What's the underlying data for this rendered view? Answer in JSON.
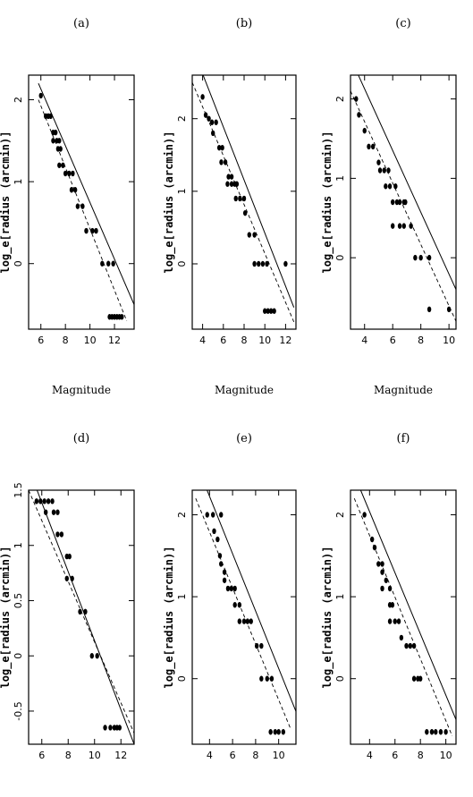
{
  "chart_data": [
    {
      "panel": "(a)",
      "type": "scatter",
      "xlabel": "Magnitude",
      "ylabel": "log_e[radius (arcmin)]",
      "xlim": [
        5,
        13.6
      ],
      "ylim": [
        -0.8,
        2.3
      ],
      "xticks": [
        "6",
        "8",
        "10",
        "12"
      ],
      "yticks": [
        "0",
        "1",
        "2"
      ],
      "points": [
        [
          6.0,
          2.05
        ],
        [
          6.4,
          1.8
        ],
        [
          6.6,
          1.8
        ],
        [
          6.8,
          1.8
        ],
        [
          7.0,
          1.6
        ],
        [
          7.2,
          1.6
        ],
        [
          7.0,
          1.5
        ],
        [
          7.3,
          1.5
        ],
        [
          7.5,
          1.5
        ],
        [
          7.4,
          1.4
        ],
        [
          7.6,
          1.4
        ],
        [
          7.5,
          1.2
        ],
        [
          7.8,
          1.2
        ],
        [
          8.0,
          1.1
        ],
        [
          8.3,
          1.1
        ],
        [
          8.6,
          1.1
        ],
        [
          8.5,
          0.9
        ],
        [
          8.8,
          0.9
        ],
        [
          9.0,
          0.7
        ],
        [
          9.4,
          0.7
        ],
        [
          9.7,
          0.4
        ],
        [
          10.2,
          0.4
        ],
        [
          10.5,
          0.4
        ],
        [
          11.0,
          0.0
        ],
        [
          11.5,
          0.0
        ],
        [
          11.9,
          0.0
        ],
        [
          11.6,
          -0.65
        ],
        [
          11.8,
          -0.65
        ],
        [
          12.0,
          -0.65
        ],
        [
          12.2,
          -0.65
        ],
        [
          12.4,
          -0.65
        ],
        [
          12.6,
          -0.65
        ]
      ],
      "solid_line": [
        [
          5.8,
          2.2
        ],
        [
          13.6,
          -0.5
        ]
      ],
      "dashed_line": [
        [
          5.8,
          2.0
        ],
        [
          13.0,
          -0.7
        ]
      ]
    },
    {
      "panel": "(b)",
      "type": "scatter",
      "xlabel": "Magnitude",
      "ylabel": "log_e[radius (arcmin)]",
      "xlim": [
        3,
        13
      ],
      "ylim": [
        -0.9,
        2.6
      ],
      "xticks": [
        "4",
        "6",
        "8",
        "10",
        "12"
      ],
      "yticks": [
        "0",
        "1",
        "2"
      ],
      "points": [
        [
          4.0,
          2.3
        ],
        [
          4.3,
          2.05
        ],
        [
          4.6,
          2.0
        ],
        [
          4.9,
          1.95
        ],
        [
          5.3,
          1.95
        ],
        [
          5.0,
          1.8
        ],
        [
          5.6,
          1.6
        ],
        [
          5.9,
          1.6
        ],
        [
          5.8,
          1.4
        ],
        [
          6.2,
          1.4
        ],
        [
          6.5,
          1.2
        ],
        [
          6.8,
          1.2
        ],
        [
          6.4,
          1.1
        ],
        [
          6.8,
          1.1
        ],
        [
          7.1,
          1.1
        ],
        [
          7.3,
          1.1
        ],
        [
          7.2,
          0.9
        ],
        [
          7.6,
          0.9
        ],
        [
          8.0,
          0.9
        ],
        [
          8.1,
          0.7
        ],
        [
          8.5,
          0.4
        ],
        [
          9.0,
          0.4
        ],
        [
          9.0,
          0.0
        ],
        [
          9.4,
          0.0
        ],
        [
          9.8,
          0.0
        ],
        [
          10.2,
          0.0
        ],
        [
          12.0,
          0.0
        ],
        [
          10.0,
          -0.65
        ],
        [
          10.3,
          -0.65
        ],
        [
          10.6,
          -0.65
        ],
        [
          10.9,
          -0.65
        ]
      ],
      "solid_line": [
        [
          3.5,
          2.8
        ],
        [
          12.8,
          -0.6
        ]
      ],
      "dashed_line": [
        [
          3.0,
          2.5
        ],
        [
          12.8,
          -0.8
        ]
      ]
    },
    {
      "panel": "(c)",
      "type": "scatter",
      "xlabel": "Magnitude",
      "ylabel": "log_e[radius (arcmin)]",
      "xlim": [
        3,
        10.5
      ],
      "ylim": [
        -0.9,
        2.3
      ],
      "xticks": [
        "4",
        "6",
        "8",
        "10"
      ],
      "yticks": [
        "0",
        "1",
        "2"
      ],
      "points": [
        [
          3.4,
          2.0
        ],
        [
          3.6,
          1.8
        ],
        [
          4.0,
          1.6
        ],
        [
          4.3,
          1.4
        ],
        [
          4.6,
          1.4
        ],
        [
          5.0,
          1.2
        ],
        [
          5.1,
          1.1
        ],
        [
          5.4,
          1.1
        ],
        [
          5.7,
          1.1
        ],
        [
          5.5,
          0.9
        ],
        [
          5.8,
          0.9
        ],
        [
          6.2,
          0.9
        ],
        [
          6.5,
          0.7
        ],
        [
          6.0,
          0.7
        ],
        [
          6.3,
          0.7
        ],
        [
          6.8,
          0.7
        ],
        [
          6.9,
          0.7
        ],
        [
          6.0,
          0.4
        ],
        [
          6.5,
          0.4
        ],
        [
          6.8,
          0.4
        ],
        [
          7.3,
          0.4
        ],
        [
          7.6,
          0.0
        ],
        [
          8.0,
          0.0
        ],
        [
          8.6,
          0.0
        ],
        [
          8.6,
          -0.65
        ],
        [
          10.0,
          -0.65
        ]
      ],
      "solid_line": [
        [
          3.3,
          2.4
        ],
        [
          10.5,
          -0.4
        ]
      ],
      "dashed_line": [
        [
          3.0,
          2.1
        ],
        [
          10.5,
          -0.8
        ]
      ]
    },
    {
      "panel": "(d)",
      "type": "scatter",
      "xlabel": "",
      "ylabel": "log_e[radius (arcmin)]",
      "xlim": [
        5,
        13
      ],
      "ylim": [
        -0.8,
        1.5
      ],
      "xticks": [
        "6",
        "8",
        "10",
        "12"
      ],
      "yticks": [
        "-0.5",
        "0",
        "0.5",
        "1",
        "1.5"
      ],
      "points": [
        [
          5.6,
          1.4
        ],
        [
          5.9,
          1.4
        ],
        [
          6.2,
          1.4
        ],
        [
          6.5,
          1.4
        ],
        [
          6.8,
          1.4
        ],
        [
          6.3,
          1.3
        ],
        [
          6.9,
          1.3
        ],
        [
          7.2,
          1.3
        ],
        [
          7.2,
          1.1
        ],
        [
          7.5,
          1.1
        ],
        [
          7.9,
          0.9
        ],
        [
          8.1,
          0.9
        ],
        [
          7.9,
          0.7
        ],
        [
          8.3,
          0.7
        ],
        [
          8.9,
          0.4
        ],
        [
          9.3,
          0.4
        ],
        [
          9.8,
          0.0
        ],
        [
          10.2,
          0.0
        ],
        [
          10.8,
          -0.65
        ],
        [
          11.2,
          -0.65
        ],
        [
          11.5,
          -0.65
        ],
        [
          11.7,
          -0.65
        ],
        [
          11.9,
          -0.65
        ]
      ],
      "solid_line": [
        [
          5.0,
          1.7
        ],
        [
          13.0,
          -0.8
        ]
      ],
      "dashed_line": [
        [
          5.0,
          1.5
        ],
        [
          13.0,
          -0.7
        ]
      ]
    },
    {
      "panel": "(e)",
      "type": "scatter",
      "xlabel": "",
      "ylabel": "log_e[radius (arcmin)]",
      "xlim": [
        2.5,
        11.5
      ],
      "ylim": [
        -0.8,
        2.3
      ],
      "xticks": [
        "4",
        "6",
        "8",
        "10"
      ],
      "yticks": [
        "0",
        "1",
        "2"
      ],
      "points": [
        [
          3.8,
          2.0
        ],
        [
          4.3,
          2.0
        ],
        [
          5.0,
          2.0
        ],
        [
          4.4,
          1.8
        ],
        [
          4.7,
          1.7
        ],
        [
          4.9,
          1.5
        ],
        [
          5.0,
          1.4
        ],
        [
          5.3,
          1.3
        ],
        [
          5.3,
          1.2
        ],
        [
          5.6,
          1.1
        ],
        [
          5.9,
          1.1
        ],
        [
          6.2,
          1.1
        ],
        [
          6.2,
          0.9
        ],
        [
          6.6,
          0.9
        ],
        [
          6.6,
          0.7
        ],
        [
          7.0,
          0.7
        ],
        [
          7.3,
          0.7
        ],
        [
          7.6,
          0.7
        ],
        [
          8.1,
          0.4
        ],
        [
          8.5,
          0.4
        ],
        [
          8.5,
          0.0
        ],
        [
          9.0,
          0.0
        ],
        [
          9.4,
          0.0
        ],
        [
          9.3,
          -0.65
        ],
        [
          9.7,
          -0.65
        ],
        [
          10.0,
          -0.65
        ],
        [
          10.4,
          -0.65
        ]
      ],
      "solid_line": [
        [
          3.5,
          2.4
        ],
        [
          11.5,
          -0.4
        ]
      ],
      "dashed_line": [
        [
          2.8,
          2.2
        ],
        [
          11.0,
          -0.6
        ]
      ]
    },
    {
      "panel": "(f)",
      "type": "scatter",
      "xlabel": "",
      "ylabel": "log_e[radius (arcmin)]",
      "xlim": [
        2.5,
        10.8
      ],
      "ylim": [
        -0.8,
        2.3
      ],
      "xticks": [
        "4",
        "6",
        "8",
        "10"
      ],
      "yticks": [
        "0",
        "1",
        "2"
      ],
      "points": [
        [
          3.6,
          2.0
        ],
        [
          4.2,
          1.7
        ],
        [
          4.4,
          1.6
        ],
        [
          4.7,
          1.4
        ],
        [
          5.0,
          1.4
        ],
        [
          5.0,
          1.3
        ],
        [
          5.3,
          1.2
        ],
        [
          5.0,
          1.1
        ],
        [
          5.6,
          1.1
        ],
        [
          5.6,
          0.9
        ],
        [
          5.8,
          0.9
        ],
        [
          5.6,
          0.7
        ],
        [
          6.0,
          0.7
        ],
        [
          6.3,
          0.7
        ],
        [
          6.5,
          0.5
        ],
        [
          6.9,
          0.4
        ],
        [
          7.2,
          0.4
        ],
        [
          7.5,
          0.4
        ],
        [
          7.5,
          0.0
        ],
        [
          7.8,
          0.0
        ],
        [
          8.0,
          0.0
        ],
        [
          8.5,
          -0.65
        ],
        [
          8.9,
          -0.65
        ],
        [
          9.2,
          -0.65
        ],
        [
          9.6,
          -0.65
        ],
        [
          10.0,
          -0.65
        ]
      ],
      "solid_line": [
        [
          3.3,
          2.3
        ],
        [
          10.8,
          -0.5
        ]
      ],
      "dashed_line": [
        [
          2.8,
          2.2
        ],
        [
          10.5,
          -0.7
        ]
      ]
    }
  ]
}
